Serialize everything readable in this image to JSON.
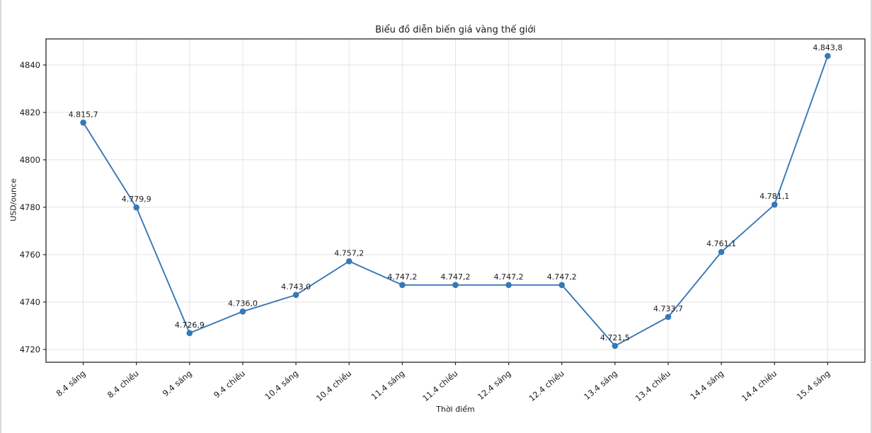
{
  "page": {
    "background": "#ffffff",
    "edge_border_color": "#d9d9d9"
  },
  "chart_data": {
    "type": "line",
    "title": "Biểu đồ diễn biến giá vàng thế giới",
    "xlabel": "Thời điểm",
    "ylabel": "USD/ounce",
    "categories": [
      "8.4 sáng",
      "8.4 chiều",
      "9.4 sáng",
      "9.4 chiều",
      "10.4 sáng",
      "10.4 chiều",
      "11.4 sáng",
      "11.4 chiều",
      "12.4 sáng",
      "12.4 chiều",
      "13.4 sáng",
      "13.4 chiều",
      "14.4 sáng",
      "14.4 chiều",
      "15.4 sáng"
    ],
    "values": [
      4815.7,
      4779.9,
      4726.9,
      4736.0,
      4743.0,
      4757.2,
      4747.2,
      4747.2,
      4747.2,
      4747.2,
      4721.5,
      4733.7,
      4761.1,
      4781.1,
      4843.8
    ],
    "point_labels": [
      "4.815,7",
      "4.779,9",
      "4.726,9",
      "4.736,0",
      "4.743,0",
      "4.757,2",
      "4.747,2",
      "4.747,2",
      "4.747,2",
      "4.747,2",
      "4.721,5",
      "4.733,7",
      "4.761,1",
      "4.781,1",
      "4.843,8"
    ],
    "yticks": [
      4720,
      4740,
      4760,
      4780,
      4800,
      4820,
      4840
    ],
    "ylim": [
      4714.6,
      4851.0
    ],
    "grid": true,
    "legend": "none",
    "line_color": "#3778b6",
    "marker": "circle",
    "x_tick_rotation": 40
  }
}
